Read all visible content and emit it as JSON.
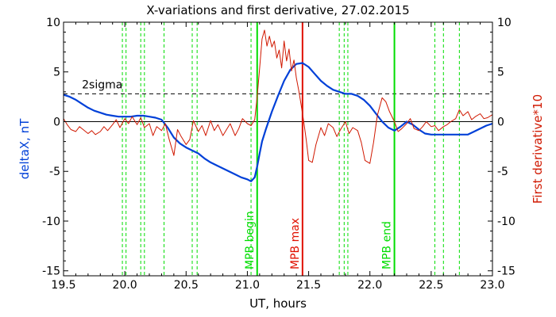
{
  "chart_data": {
    "type": "line",
    "title": "X-variations and first derivative, 27.02.2015",
    "xlabel": "UT, hours",
    "ylabel_left": "deltaX, nT",
    "ylabel_right": "First derivative*10",
    "xlim": [
      19.5,
      23.0
    ],
    "ylim_left": [
      -15.5,
      10
    ],
    "ylim_right": [
      -15.5,
      10
    ],
    "x_ticks": [
      "19.5",
      "20.0",
      "20.5",
      "21.0",
      "21.5",
      "22.0",
      "22.5",
      "23.0"
    ],
    "y_ticks_left": [
      "10",
      "5",
      "0",
      "-5",
      "-10",
      "-15"
    ],
    "y_ticks_right": [
      "10",
      "5",
      "0",
      "-5",
      "-10",
      "-15"
    ],
    "colors": {
      "deltaX": "#0040d8",
      "derivative": "#d01800",
      "mpb_begin_end": "#00dd00",
      "mpb_max": "#e01000",
      "axes": "#000000"
    },
    "threshold": {
      "label": "2sigma",
      "value": 2.8,
      "style": "dashed"
    },
    "zero_line": 0,
    "vertical_markers": [
      {
        "x": 21.08,
        "label": "MPB begin",
        "color": "#00dd00"
      },
      {
        "x": 21.45,
        "label": "MPB max",
        "color": "#e01000"
      },
      {
        "x": 22.2,
        "label": "MPB end",
        "color": "#00dd00"
      }
    ],
    "dashed_verticals": [
      19.98,
      20.01,
      20.13,
      20.16,
      20.32,
      20.55,
      20.59,
      21.03,
      21.75,
      21.79,
      21.82,
      22.53,
      22.6,
      22.73
    ],
    "series": [
      {
        "name": "deltaX",
        "axis": "left",
        "x": [
          19.5,
          19.55,
          19.6,
          19.65,
          19.7,
          19.75,
          19.8,
          19.85,
          19.9,
          19.95,
          20.0,
          20.05,
          20.1,
          20.15,
          20.2,
          20.25,
          20.3,
          20.35,
          20.4,
          20.45,
          20.5,
          20.55,
          20.6,
          20.65,
          20.7,
          20.75,
          20.8,
          20.85,
          20.9,
          20.95,
          21.0,
          21.03,
          21.06,
          21.08,
          21.1,
          21.12,
          21.15,
          21.2,
          21.25,
          21.3,
          21.35,
          21.4,
          21.45,
          21.5,
          21.55,
          21.6,
          21.65,
          21.7,
          21.75,
          21.8,
          21.85,
          21.9,
          21.95,
          22.0,
          22.05,
          22.1,
          22.15,
          22.2,
          22.25,
          22.3,
          22.35,
          22.4,
          22.45,
          22.5,
          22.55,
          22.6,
          22.65,
          22.7,
          22.75,
          22.8,
          22.85,
          22.9,
          22.95,
          23.0
        ],
        "y": [
          2.7,
          2.5,
          2.2,
          1.8,
          1.4,
          1.1,
          0.9,
          0.7,
          0.6,
          0.5,
          0.5,
          0.5,
          0.6,
          0.6,
          0.5,
          0.4,
          0.2,
          -0.6,
          -1.6,
          -2.2,
          -2.6,
          -2.9,
          -3.2,
          -3.7,
          -4.1,
          -4.4,
          -4.7,
          -5.0,
          -5.3,
          -5.6,
          -5.8,
          -6.0,
          -5.6,
          -4.5,
          -3.2,
          -2.0,
          -0.8,
          1.0,
          2.6,
          4.1,
          5.2,
          5.8,
          5.9,
          5.5,
          4.8,
          4.1,
          3.6,
          3.2,
          3.0,
          2.8,
          2.8,
          2.6,
          2.2,
          1.6,
          0.8,
          0.0,
          -0.6,
          -0.9,
          -0.5,
          0.0,
          -0.3,
          -0.8,
          -1.2,
          -1.3,
          -1.3,
          -1.3,
          -1.3,
          -1.3,
          -1.3,
          -1.3,
          -1.0,
          -0.7,
          -0.4,
          -0.2
        ]
      },
      {
        "name": "First derivative*10",
        "axis": "right",
        "x": [
          19.5,
          19.53,
          19.56,
          19.6,
          19.63,
          19.66,
          19.7,
          19.73,
          19.76,
          19.8,
          19.83,
          19.86,
          19.9,
          19.93,
          19.96,
          20.0,
          20.03,
          20.06,
          20.1,
          20.13,
          20.16,
          20.2,
          20.23,
          20.26,
          20.3,
          20.33,
          20.36,
          20.4,
          20.43,
          20.46,
          20.5,
          20.53,
          20.56,
          20.6,
          20.63,
          20.66,
          20.7,
          20.73,
          20.76,
          20.8,
          20.83,
          20.86,
          20.9,
          20.93,
          20.96,
          21.0,
          21.03,
          21.06,
          21.08,
          21.1,
          21.12,
          21.14,
          21.16,
          21.18,
          21.2,
          21.22,
          21.24,
          21.26,
          21.28,
          21.3,
          21.32,
          21.34,
          21.36,
          21.38,
          21.4,
          21.42,
          21.44,
          21.46,
          21.48,
          21.5,
          21.53,
          21.56,
          21.6,
          21.63,
          21.66,
          21.7,
          21.73,
          21.76,
          21.8,
          21.83,
          21.86,
          21.9,
          21.93,
          21.96,
          22.0,
          22.03,
          22.06,
          22.1,
          22.13,
          22.16,
          22.2,
          22.23,
          22.26,
          22.3,
          22.33,
          22.36,
          22.4,
          22.43,
          22.46,
          22.5,
          22.53,
          22.56,
          22.6,
          22.63,
          22.66,
          22.7,
          22.73,
          22.76,
          22.8,
          22.83,
          22.86,
          22.9,
          22.93,
          22.96,
          23.0
        ],
        "y": [
          0.3,
          -0.3,
          -0.8,
          -1.0,
          -0.5,
          -0.8,
          -1.2,
          -0.9,
          -1.3,
          -1.0,
          -0.5,
          -0.9,
          -0.3,
          0.2,
          -0.6,
          0.3,
          -0.2,
          0.5,
          -0.3,
          0.4,
          -0.6,
          -0.2,
          -1.4,
          -0.5,
          -0.9,
          -0.2,
          -1.7,
          -3.4,
          -0.8,
          -1.5,
          -2.3,
          -1.8,
          0.1,
          -1.0,
          -0.4,
          -1.4,
          0.1,
          -0.9,
          -0.3,
          -1.4,
          -0.8,
          -0.2,
          -1.4,
          -0.7,
          0.3,
          -0.2,
          -0.4,
          0.2,
          2.5,
          5.4,
          8.3,
          9.2,
          7.6,
          8.6,
          7.5,
          8.1,
          6.4,
          7.2,
          5.4,
          8.1,
          6.1,
          7.3,
          5.1,
          6.2,
          4.4,
          3.1,
          1.6,
          0.0,
          -1.8,
          -3.9,
          -4.1,
          -2.3,
          -0.6,
          -1.4,
          -0.2,
          -0.6,
          -1.5,
          -0.8,
          0.0,
          -1.2,
          -0.6,
          -0.9,
          -2.1,
          -3.9,
          -4.2,
          -2.1,
          0.6,
          2.4,
          2.0,
          1.0,
          0.0,
          -1.0,
          -0.7,
          -0.2,
          0.3,
          -0.7,
          -0.9,
          -0.5,
          0.0,
          -0.5,
          -0.4,
          -0.9,
          -0.5,
          -0.3,
          0.0,
          0.3,
          1.2,
          0.6,
          1.0,
          0.2,
          0.5,
          0.8,
          0.3,
          0.4,
          0.7
        ]
      }
    ]
  }
}
